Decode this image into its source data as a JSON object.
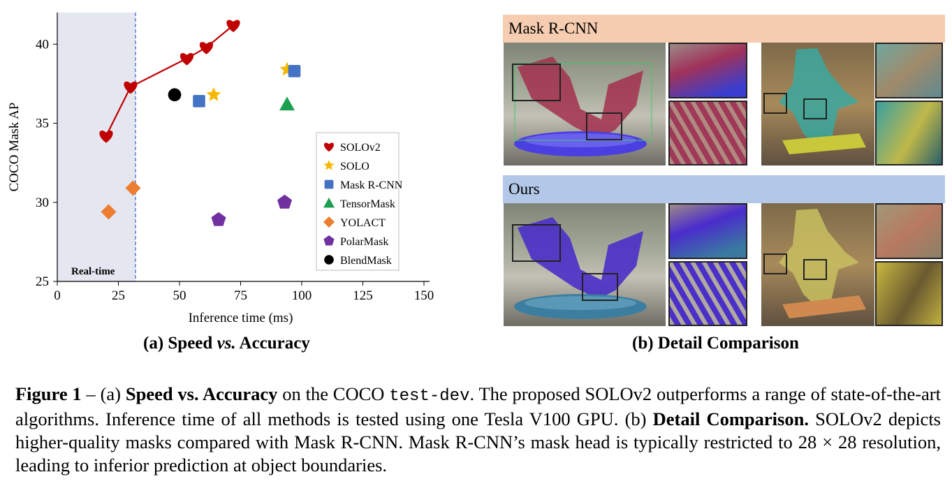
{
  "chart_data": {
    "type": "scatter",
    "xlabel": "Inference time (ms)",
    "ylabel": "COCO Mask AP",
    "xlim": [
      0,
      150
    ],
    "ylim": [
      25,
      42
    ],
    "xticks": [
      "0",
      "25",
      "50",
      "75",
      "100",
      "125",
      "150"
    ],
    "yticks": [
      "25",
      "30",
      "35",
      "40"
    ],
    "realtime_label": "Real-time",
    "realtime_threshold_ms": 32,
    "legend_position": "center-right",
    "series": [
      {
        "name": "SOLOv2",
        "marker": "heart",
        "color": "#c00000",
        "connected": true,
        "points": [
          [
            20,
            34.2
          ],
          [
            30,
            37.3
          ],
          [
            53,
            39.1
          ],
          [
            61,
            39.8
          ],
          [
            72,
            41.2
          ]
        ]
      },
      {
        "name": "SOLO",
        "marker": "star",
        "color": "#f5b800",
        "points": [
          [
            64,
            36.8
          ],
          [
            94,
            38.4
          ]
        ]
      },
      {
        "name": "Mask R-CNN",
        "marker": "square",
        "color": "#4472c4",
        "points": [
          [
            58,
            36.4
          ],
          [
            97,
            38.3
          ]
        ]
      },
      {
        "name": "TensorMask",
        "marker": "triangle",
        "color": "#1aa050",
        "points": [
          [
            94,
            36.2
          ]
        ]
      },
      {
        "name": "YOLACT",
        "marker": "diamond",
        "color": "#ed7d31",
        "points": [
          [
            21,
            29.4
          ],
          [
            31,
            30.9
          ]
        ]
      },
      {
        "name": "PolarMask",
        "marker": "pentagon",
        "color": "#7030a0",
        "points": [
          [
            66,
            28.9
          ],
          [
            93,
            30.0
          ]
        ]
      },
      {
        "name": "BlendMask",
        "marker": "circle",
        "color": "#000000",
        "points": [
          [
            48,
            36.8
          ]
        ]
      }
    ]
  },
  "captions": {
    "a_prefix": "(a) Speed ",
    "a_vs": "vs.",
    "a_suffix": " Accuracy",
    "b": "(b) Detail Comparison"
  },
  "comparison": {
    "top_label": "Mask R-CNN",
    "bottom_label": "Ours"
  },
  "figure_caption": {
    "fig_label": "Figure 1",
    "dash": " – (a) ",
    "bold1": "Speed vs. Accuracy",
    "text1": " on the COCO ",
    "code": "test-dev",
    "text2": ". The proposed SOLOv2 outperforms a range of state-of-the-art algorithms. Inference time of all methods is tested using one Tesla V100 GPU. (b) ",
    "bold2": "Detail Comparison.",
    "text3": " SOLOv2 depicts higher-quality masks compared with Mask R-CNN. Mask R-CNN’s mask head is typically restricted to 28 × 28 resolution, leading to inferior prediction at object boundaries."
  }
}
